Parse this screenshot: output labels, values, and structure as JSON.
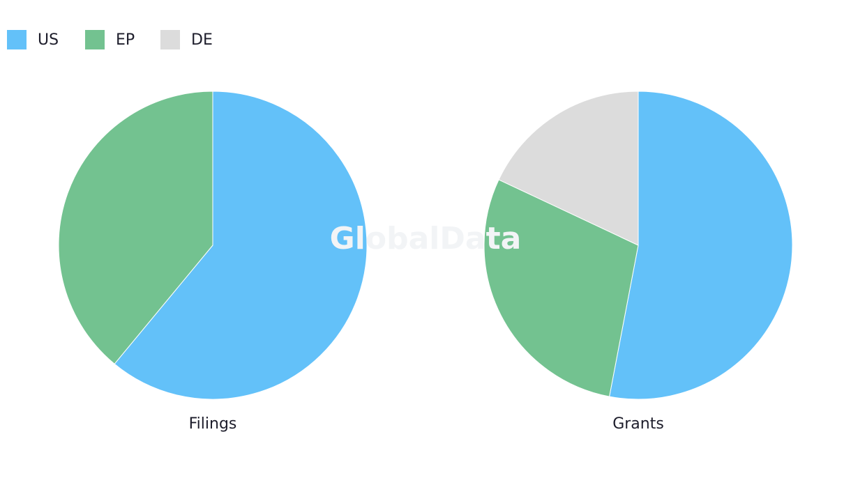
{
  "legend": {
    "items": [
      {
        "name": "US",
        "color": "#63c1f9"
      },
      {
        "name": "EP",
        "color": "#73c290"
      },
      {
        "name": "DE",
        "color": "#dcdcdc"
      }
    ]
  },
  "watermark": "GlobalData",
  "chart_data": [
    {
      "type": "pie",
      "title": "Filings",
      "categories": [
        "US",
        "EP"
      ],
      "values": [
        61,
        39
      ],
      "colors": [
        "#63c1f9",
        "#73c290"
      ]
    },
    {
      "type": "pie",
      "title": "Grants",
      "categories": [
        "US",
        "EP",
        "DE"
      ],
      "values": [
        53,
        29,
        18
      ],
      "colors": [
        "#63c1f9",
        "#73c290",
        "#dcdcdc"
      ]
    }
  ]
}
